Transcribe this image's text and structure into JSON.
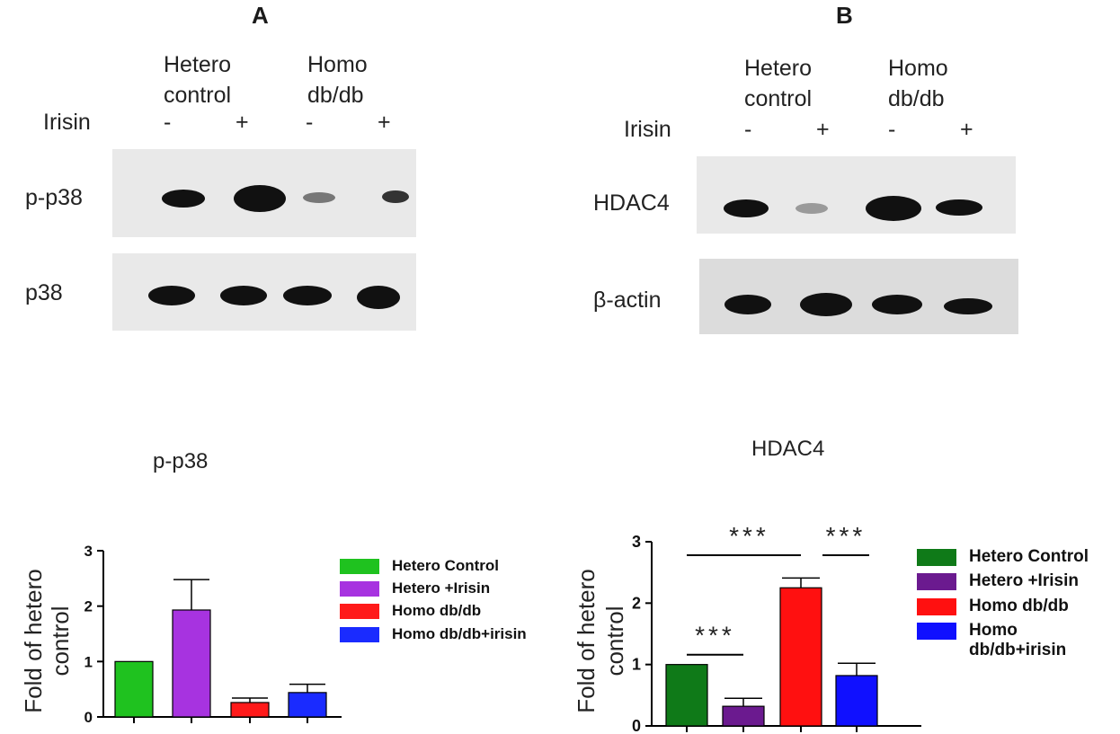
{
  "panels": {
    "A": {
      "letter": "A",
      "group_labels": [
        [
          "Hetero",
          "control"
        ],
        [
          "Homo",
          "db/db"
        ]
      ],
      "treatment_label": "Irisin",
      "treatment_signs": [
        "-",
        "+",
        "-",
        "+"
      ],
      "blot_labels": [
        "p-p38",
        "p38"
      ]
    },
    "B": {
      "letter": "B",
      "group_labels": [
        [
          "Hetero",
          "control"
        ],
        [
          "Homo",
          "db/db"
        ]
      ],
      "treatment_label": "Irisin",
      "treatment_signs": [
        "-",
        "+",
        "-",
        "+"
      ],
      "blot_labels": [
        "HDAC4",
        "β-actin"
      ]
    }
  },
  "chart_data": [
    {
      "type": "bar",
      "title": "p-p38",
      "ylabel": "Fold of hetero control",
      "ylim": [
        0,
        3
      ],
      "yticks": [
        "0",
        "1",
        "2",
        "3"
      ],
      "categories": [
        "Hetero Control",
        "Hetero +Irisin",
        "Homo db/db",
        "Homo db/db+irisin"
      ],
      "values": [
        1.0,
        1.93,
        0.26,
        0.44
      ],
      "errors": [
        0,
        0.55,
        0.08,
        0.15
      ],
      "colors": [
        "#1fc21f",
        "#a733e0",
        "#ff1a1a",
        "#1a2bff"
      ],
      "legend": [
        "Hetero Control",
        "Hetero +Irisin",
        "Homo db/db",
        "Homo db/db+irisin"
      ],
      "annotations": []
    },
    {
      "type": "bar",
      "title": "HDAC4",
      "ylabel": "Fold of hetero control",
      "ylim": [
        0,
        3
      ],
      "yticks": [
        "0",
        "1",
        "2",
        "3"
      ],
      "categories": [
        "Hetero Control",
        "Hetero +Irisin",
        "Homo db/db",
        "Homo db/db+irisin"
      ],
      "values": [
        1.0,
        0.32,
        2.25,
        0.82
      ],
      "errors": [
        0,
        0.13,
        0.16,
        0.2
      ],
      "colors": [
        "#0f7a18",
        "#6b1a8f",
        "#ff1010",
        "#1010ff"
      ],
      "legend": [
        "Hetero Control",
        "Hetero +Irisin",
        "Homo db/db",
        "Homo db/db+irisin"
      ],
      "annotations": [
        "***",
        "***",
        "***"
      ]
    }
  ]
}
